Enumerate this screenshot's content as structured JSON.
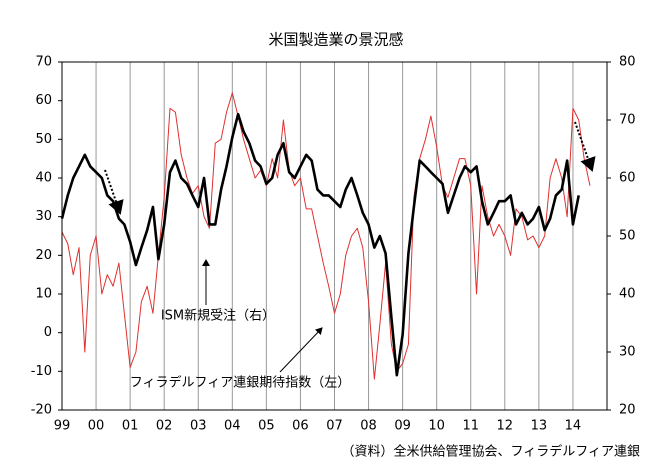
{
  "chart_data": {
    "type": "line",
    "title": "米国製造業の景況感",
    "annotations": [
      "ISM新規受注（右）",
      "フィラデルフィア連銀期待指数（左）",
      "（資料）全米供給管理協会、フィラデルフィア連銀"
    ],
    "x": [
      1999.0,
      1999.17,
      1999.33,
      1999.5,
      1999.67,
      1999.83,
      2000.0,
      2000.17,
      2000.33,
      2000.5,
      2000.67,
      2000.83,
      2001.0,
      2001.17,
      2001.33,
      2001.5,
      2001.67,
      2001.83,
      2002.0,
      2002.17,
      2002.33,
      2002.5,
      2002.67,
      2002.83,
      2003.0,
      2003.17,
      2003.33,
      2003.5,
      2003.67,
      2003.83,
      2004.0,
      2004.17,
      2004.33,
      2004.5,
      2004.67,
      2004.83,
      2005.0,
      2005.17,
      2005.33,
      2005.5,
      2005.67,
      2005.83,
      2006.0,
      2006.17,
      2006.33,
      2006.5,
      2006.67,
      2006.83,
      2007.0,
      2007.17,
      2007.33,
      2007.5,
      2007.67,
      2007.83,
      2008.0,
      2008.17,
      2008.33,
      2008.5,
      2008.67,
      2008.83,
      2009.0,
      2009.17,
      2009.33,
      2009.5,
      2009.67,
      2009.83,
      2010.0,
      2010.17,
      2010.33,
      2010.5,
      2010.67,
      2010.83,
      2011.0,
      2011.17,
      2011.33,
      2011.5,
      2011.67,
      2011.83,
      2012.0,
      2012.17,
      2012.33,
      2012.5,
      2012.67,
      2012.83,
      2013.0,
      2013.17,
      2013.33,
      2013.5,
      2013.67,
      2013.83,
      2014.0,
      2014.17,
      2014.33,
      2014.5
    ],
    "series": [
      {
        "name": "フィラデルフィア連銀期待指数（左）",
        "color": "#e03030",
        "width": 1,
        "axis": "y",
        "values": [
          26,
          23,
          15,
          22,
          -5,
          20,
          25,
          10,
          15,
          12,
          18,
          5,
          -9,
          -5,
          8,
          12,
          5,
          20,
          35,
          58,
          57,
          46,
          40,
          36,
          38,
          30,
          27,
          49,
          50,
          57,
          62,
          56,
          50,
          45,
          40,
          42,
          38,
          45,
          40,
          55,
          42,
          38,
          40,
          32,
          32,
          25,
          18,
          12,
          5,
          10,
          20,
          25,
          27,
          22,
          8,
          -12,
          2,
          18,
          -3,
          -10,
          -8,
          -3,
          35,
          45,
          50,
          56,
          48,
          38,
          35,
          40,
          45,
          45,
          38,
          10,
          38,
          30,
          25,
          28,
          25,
          20,
          32,
          30,
          24,
          25,
          22,
          25,
          40,
          45,
          40,
          30,
          58,
          55,
          45,
          38
        ]
      },
      {
        "name": "ISM新規受注（右）",
        "color": "#000000",
        "width": 2.6,
        "axis": "y2",
        "values": [
          53,
          57,
          60,
          62,
          64,
          62,
          61,
          60,
          57,
          56,
          53,
          52,
          49,
          45,
          48,
          51,
          55,
          46,
          52,
          61,
          63,
          60,
          59,
          57,
          55,
          60,
          52,
          52,
          58,
          62,
          67,
          71,
          68,
          66,
          63,
          62,
          59,
          60,
          64,
          66,
          61,
          60,
          62,
          64,
          63,
          58,
          57,
          57,
          56,
          55,
          58,
          60,
          57,
          54,
          52,
          48,
          50,
          47,
          36,
          26,
          33,
          47,
          55,
          63,
          62,
          61,
          60,
          59,
          54,
          57,
          60,
          62,
          61,
          62,
          56,
          52,
          54,
          56,
          56,
          57,
          52,
          54,
          52,
          53,
          55,
          51,
          53,
          57,
          58,
          63,
          52,
          57,
          null,
          null
        ]
      }
    ],
    "xlim": [
      1999,
      2015
    ],
    "xticks": [
      {
        "value": 1999,
        "label": "99"
      },
      {
        "value": 2000,
        "label": "00"
      },
      {
        "value": 2001,
        "label": "01"
      },
      {
        "value": 2002,
        "label": "02"
      },
      {
        "value": 2003,
        "label": "03"
      },
      {
        "value": 2004,
        "label": "04"
      },
      {
        "value": 2005,
        "label": "05"
      },
      {
        "value": 2006,
        "label": "06"
      },
      {
        "value": 2007,
        "label": "07"
      },
      {
        "value": 2008,
        "label": "08"
      },
      {
        "value": 2009,
        "label": "09"
      },
      {
        "value": 2010,
        "label": "10"
      },
      {
        "value": 2011,
        "label": "11"
      },
      {
        "value": 2012,
        "label": "12"
      },
      {
        "value": 2013,
        "label": "13"
      },
      {
        "value": 2014,
        "label": "14"
      }
    ],
    "ylim": [
      -20,
      70
    ],
    "yticks": [
      -20,
      -10,
      0,
      10,
      20,
      30,
      40,
      50,
      60,
      70
    ],
    "y2lim": [
      20,
      80
    ],
    "y2ticks": [
      20,
      30,
      40,
      50,
      60,
      70,
      80
    ],
    "grid": true
  }
}
